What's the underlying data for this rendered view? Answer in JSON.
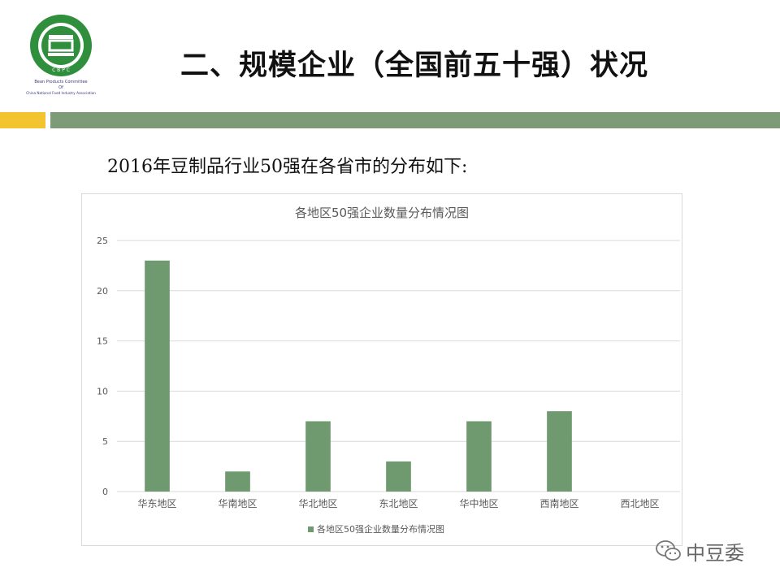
{
  "slide": {
    "title": "二、规模企业（全国前五十强）状况",
    "subtitle": "2016年豆制品行业50强在各省市的分布如下:",
    "logo_text": [
      "Bean Products Committee",
      "Of",
      "China National Food Industry Association"
    ],
    "logo_abbr": "C B P C",
    "watermark": "中豆委"
  },
  "colors": {
    "bar": "#6f9a70",
    "yellow": "#f4c430",
    "green": "#7d9b76",
    "grid": "#d9d9d9",
    "axis_text": "#595959"
  },
  "chart_data": {
    "type": "bar",
    "title": "各地区50强企业数量分布情况图",
    "categories": [
      "华东地区",
      "华南地区",
      "华北地区",
      "东北地区",
      "华中地区",
      "西南地区",
      "西北地区"
    ],
    "series": [
      {
        "name": "各地区50强企业数量分布情况图",
        "values": [
          23,
          2,
          7,
          3,
          7,
          8,
          0
        ]
      }
    ],
    "ylim": [
      0,
      25
    ],
    "yticks": [
      0,
      5,
      10,
      15,
      20,
      25
    ],
    "grid": true,
    "legend": "bottom"
  }
}
